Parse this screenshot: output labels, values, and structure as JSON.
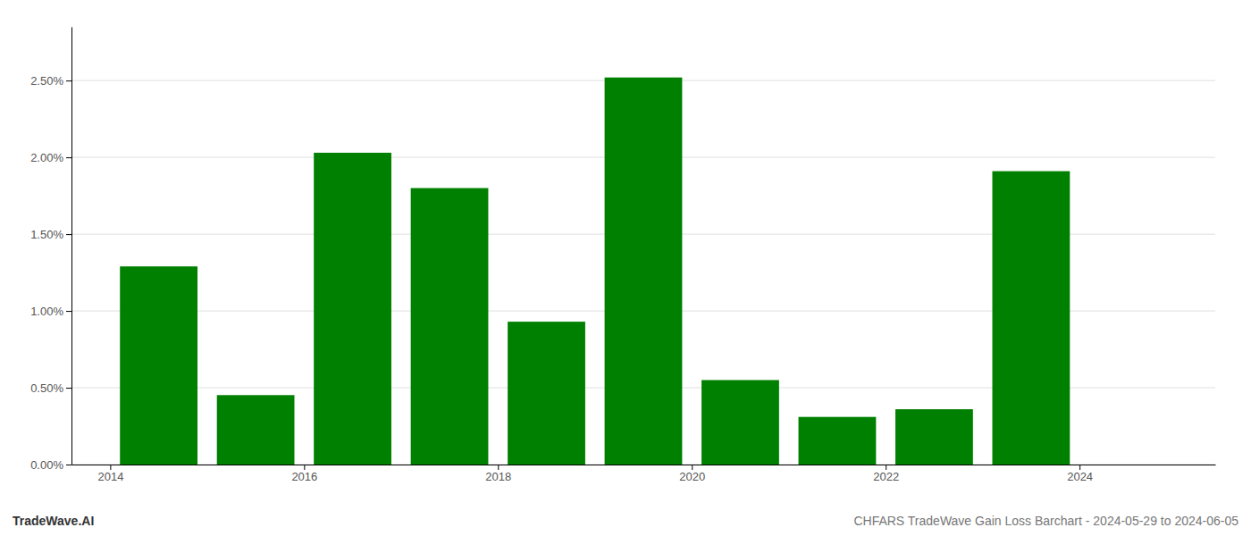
{
  "chart_data": {
    "type": "bar",
    "x": [
      2014,
      2015,
      2016,
      2017,
      2018,
      2019,
      2020,
      2021,
      2022,
      2023,
      2024
    ],
    "values": [
      0.0129,
      0.00452,
      0.0203,
      0.018,
      0.0093,
      0.0252,
      0.0055,
      0.0031,
      0.0036,
      0.0191,
      0.0
    ],
    "color": "#008000",
    "xlim": [
      2013.1,
      2024.9
    ],
    "xticks": [
      {
        "value": 2013.5,
        "label": "2014"
      },
      {
        "value": 2015.5,
        "label": "2016"
      },
      {
        "value": 2017.5,
        "label": "2018"
      },
      {
        "value": 2019.5,
        "label": "2020"
      },
      {
        "value": 2021.5,
        "label": "2022"
      },
      {
        "value": 2023.5,
        "label": "2024"
      }
    ],
    "ylim": [
      0,
      0.0285
    ],
    "yticks": [
      {
        "value": 0.0,
        "label": "0.00%"
      },
      {
        "value": 0.005,
        "label": "0.50%"
      },
      {
        "value": 0.01,
        "label": "1.00%"
      },
      {
        "value": 0.015,
        "label": "1.50%"
      },
      {
        "value": 0.02,
        "label": "2.00%"
      },
      {
        "value": 0.025,
        "label": "2.50%"
      }
    ],
    "grid": true,
    "annotations": [
      "TradeWave.AI",
      "CHFARS TradeWave Gain Loss Barchart - 2024-05-29 to 2024-06-05"
    ]
  }
}
